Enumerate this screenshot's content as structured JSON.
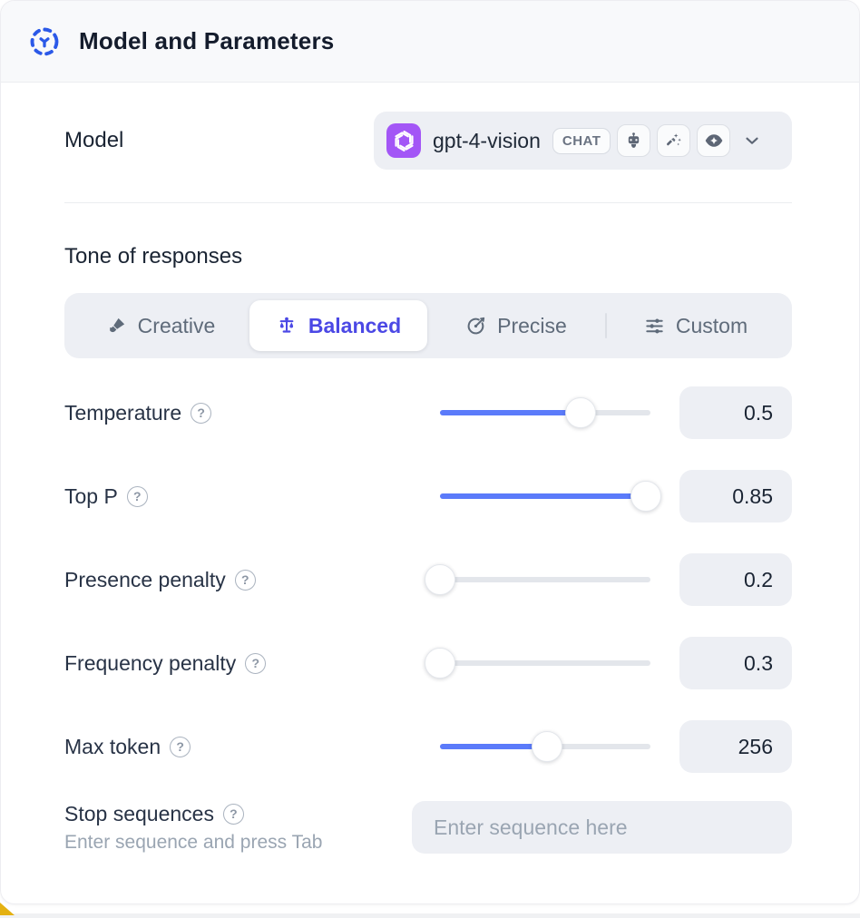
{
  "header": {
    "title": "Model and Parameters"
  },
  "model": {
    "label": "Model",
    "selected_model": "gpt-4-vision",
    "type_badge": "CHAT",
    "capabilities": [
      "assistant",
      "completion",
      "vision"
    ],
    "provider": "openai"
  },
  "tone": {
    "heading": "Tone of responses",
    "options": [
      {
        "label": "Creative",
        "icon": "paintbrush-icon",
        "selected": false
      },
      {
        "label": "Balanced",
        "icon": "balance-scale-icon",
        "selected": true
      },
      {
        "label": "Precise",
        "icon": "target-icon",
        "selected": false
      },
      {
        "label": "Custom",
        "icon": "sliders-icon",
        "selected": false
      }
    ]
  },
  "parameters": [
    {
      "label": "Temperature",
      "value": "0.5",
      "fill_pct": 67
    },
    {
      "label": "Top P",
      "value": "0.85",
      "fill_pct": 98
    },
    {
      "label": "Presence penalty",
      "value": "0.2",
      "fill_pct": 0
    },
    {
      "label": "Frequency penalty",
      "value": "0.3",
      "fill_pct": 0
    },
    {
      "label": "Max token",
      "value": "256",
      "fill_pct": 51
    }
  ],
  "stop_sequences": {
    "label": "Stop sequences",
    "hint": "Enter sequence and press Tab",
    "placeholder": "Enter sequence here"
  },
  "help_glyph": "?",
  "colors": {
    "accent_indigo": "#4B48E5",
    "slider_blue": "#5B7BFA",
    "avatar_purple": "#A356F6",
    "header_icon_blue": "#2B59E8",
    "control_bg": "#EDEFF4",
    "accent_yellow": "#E4B112"
  }
}
